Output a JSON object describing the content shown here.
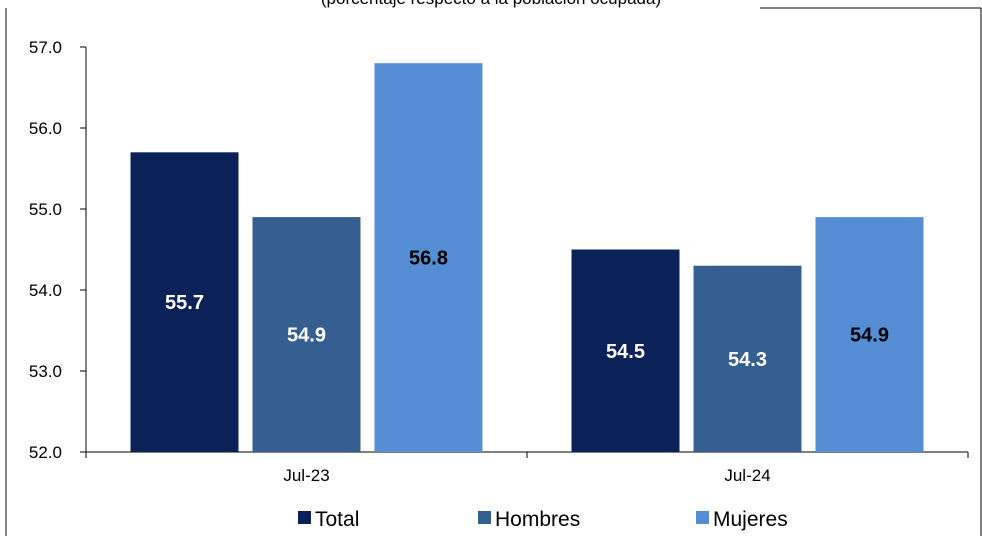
{
  "chart_data": {
    "type": "bar",
    "subtitle": "(porcentaje respecto a la población ocupada)",
    "categories": [
      "Jul-23",
      "Jul-24"
    ],
    "series": [
      {
        "name": "Total",
        "values": [
          55.7,
          54.5
        ],
        "color": "#0b2259",
        "label_color": "#ffffff"
      },
      {
        "name": "Hombres",
        "values": [
          54.9,
          54.3
        ],
        "color": "#355f91",
        "label_color": "#ffffff"
      },
      {
        "name": "Mujeres",
        "values": [
          56.8,
          54.9
        ],
        "color": "#558ed5",
        "label_color": "#000000"
      }
    ],
    "y_ticks": [
      "52.0",
      "53.0",
      "54.0",
      "55.0",
      "56.0",
      "57.0"
    ],
    "ylim": [
      52.0,
      57.0
    ],
    "grid": false,
    "legend_position": "bottom"
  }
}
